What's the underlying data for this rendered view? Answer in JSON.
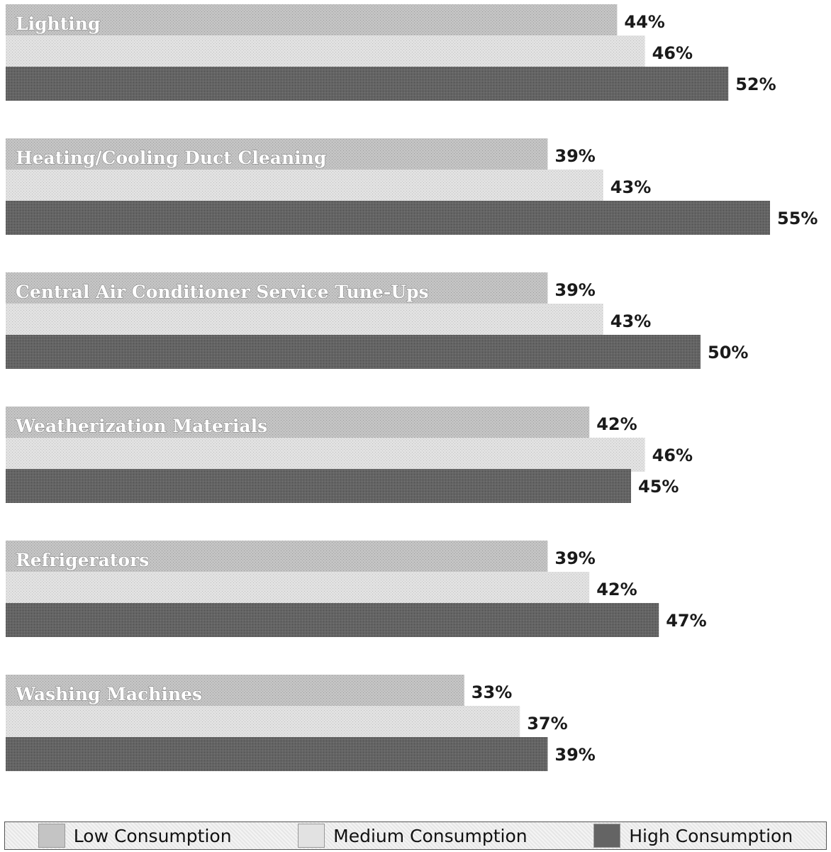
{
  "chart_data": {
    "type": "bar",
    "orientation": "horizontal",
    "categories": [
      "Lighting",
      "Heating/Cooling Duct Cleaning",
      "Central Air Conditioner Service Tune-Ups",
      "Weatherization Materials",
      "Refrigerators",
      "Washing Machines"
    ],
    "series": [
      {
        "name": "Low Consumption",
        "values": [
          44,
          39,
          39,
          42,
          39,
          33
        ],
        "labels": [
          "44%",
          "39%",
          "39%",
          "42%",
          "39%",
          "33%"
        ],
        "color": "#c0c0c0"
      },
      {
        "name": "Medium Consumption",
        "values": [
          46,
          43,
          43,
          46,
          42,
          37
        ],
        "labels": [
          "46%",
          "43%",
          "43%",
          "46%",
          "42%",
          "37%"
        ],
        "color": "#dedede"
      },
      {
        "name": "High Consumption",
        "values": [
          52,
          55,
          50,
          45,
          47,
          39
        ],
        "labels": [
          "52%",
          "55%",
          "50%",
          "45%",
          "47%",
          "39%"
        ],
        "color": "#606060"
      }
    ],
    "title": "",
    "xlabel": "",
    "ylabel": "",
    "xlim": [
      0,
      55
    ],
    "grid": false,
    "legend_position": "bottom"
  },
  "legend": {
    "items": [
      {
        "label": "Low Consumption",
        "color": "#c0c0c0"
      },
      {
        "label": "Medium Consumption",
        "color": "#dedede"
      },
      {
        "label": "High Consumption",
        "color": "#606060"
      }
    ]
  }
}
